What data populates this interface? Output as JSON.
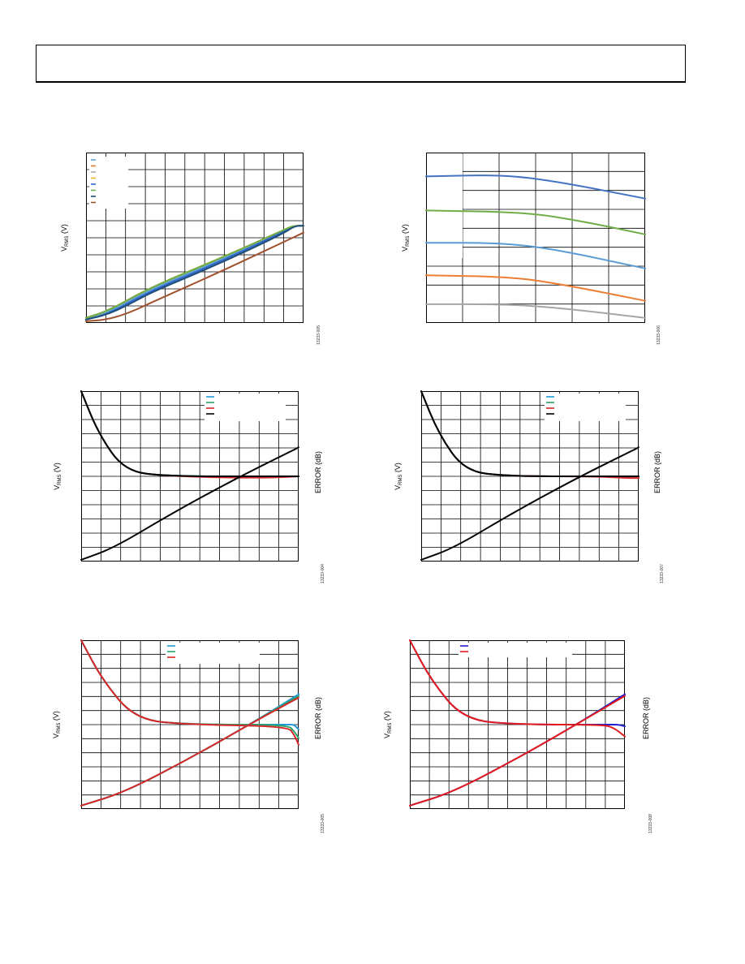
{
  "header": {
    "text": ""
  },
  "charts": [
    {
      "id": "c1",
      "ylabel_main": "V",
      "ylabel_sub": "RMS",
      "ylabel_tail": " (V)",
      "fig_id": "13233-005",
      "series": [
        {
          "color": "#5aa3d6",
          "points": [
            [
              0,
              0.02
            ],
            [
              0.1,
              0.06
            ],
            [
              0.3,
              0.2
            ],
            [
              0.6,
              0.36
            ],
            [
              0.9,
              0.53
            ],
            [
              0.96,
              0.57
            ],
            [
              1,
              0.57
            ]
          ]
        },
        {
          "color": "#e07b2a",
          "points": [
            [
              0,
              0.03
            ],
            [
              0.1,
              0.07
            ],
            [
              0.3,
              0.21
            ],
            [
              0.6,
              0.37
            ],
            [
              0.9,
              0.54
            ],
            [
              0.95,
              0.57
            ],
            [
              1,
              0.57
            ]
          ]
        },
        {
          "color": "#aaaaaa",
          "points": [
            [
              0,
              0.03
            ],
            [
              0.1,
              0.07
            ],
            [
              0.3,
              0.21
            ],
            [
              0.6,
              0.37
            ],
            [
              0.9,
              0.54
            ],
            [
              0.95,
              0.57
            ],
            [
              1,
              0.57
            ]
          ]
        },
        {
          "color": "#e8b820",
          "points": [
            [
              0,
              0.03
            ],
            [
              0.1,
              0.07
            ],
            [
              0.3,
              0.21
            ],
            [
              0.6,
              0.37
            ],
            [
              0.9,
              0.54
            ],
            [
              0.95,
              0.57
            ],
            [
              1,
              0.57
            ]
          ]
        },
        {
          "color": "#3366cc",
          "points": [
            [
              0,
              0.02
            ],
            [
              0.1,
              0.05
            ],
            [
              0.3,
              0.19
            ],
            [
              0.6,
              0.35
            ],
            [
              0.9,
              0.53
            ],
            [
              0.96,
              0.57
            ],
            [
              1,
              0.57
            ]
          ]
        },
        {
          "color": "#70ad47",
          "points": [
            [
              0,
              0.03
            ],
            [
              0.1,
              0.07
            ],
            [
              0.3,
              0.21
            ],
            [
              0.6,
              0.37
            ],
            [
              0.9,
              0.54
            ],
            [
              0.95,
              0.57
            ],
            [
              1,
              0.57
            ]
          ]
        },
        {
          "color": "#1f4e79",
          "points": [
            [
              0,
              0.02
            ],
            [
              0.1,
              0.05
            ],
            [
              0.2,
              0.11
            ],
            [
              0.3,
              0.18
            ],
            [
              0.6,
              0.34
            ],
            [
              0.9,
              0.52
            ],
            [
              0.96,
              0.57
            ],
            [
              1,
              0.57
            ]
          ]
        },
        {
          "color": "#a0522d",
          "points": [
            [
              0,
              0.01
            ],
            [
              0.1,
              0.02
            ],
            [
              0.2,
              0.06
            ],
            [
              0.3,
              0.12
            ],
            [
              0.6,
              0.29
            ],
            [
              0.9,
              0.47
            ],
            [
              1,
              0.53
            ]
          ]
        }
      ]
    },
    {
      "id": "c2",
      "ylabel_main": "V",
      "ylabel_sub": "RMS",
      "ylabel_tail": " (V)",
      "fig_id": "13233-006",
      "series": [
        {
          "color": "#4472c4",
          "points": [
            [
              0,
              0.86
            ],
            [
              0.35,
              0.87
            ],
            [
              0.6,
              0.83
            ],
            [
              1,
              0.73
            ]
          ]
        },
        {
          "color": "#70ad47",
          "points": [
            [
              0,
              0.66
            ],
            [
              0.45,
              0.65
            ],
            [
              0.7,
              0.6
            ],
            [
              1,
              0.52
            ]
          ]
        },
        {
          "color": "#5b9bd5",
          "points": [
            [
              0,
              0.47
            ],
            [
              0.35,
              0.47
            ],
            [
              0.6,
              0.43
            ],
            [
              1,
              0.32
            ]
          ]
        },
        {
          "color": "#ed7d31",
          "points": [
            [
              0,
              0.28
            ],
            [
              0.4,
              0.27
            ],
            [
              0.65,
              0.22
            ],
            [
              1,
              0.13
            ]
          ]
        },
        {
          "color": "#a5a5a5",
          "points": [
            [
              0,
              0.11
            ],
            [
              0.35,
              0.11
            ],
            [
              0.6,
              0.09
            ],
            [
              1,
              0.03
            ]
          ]
        }
      ]
    },
    {
      "id": "c3",
      "ylabel_main": "V",
      "ylabel_sub": "RMS",
      "ylabel_tail": " (V)",
      "y2label": "ERROR (dB)",
      "fig_id": "13233-004",
      "series": [
        {
          "color": "#1f9ad6",
          "points": [
            [
              0,
              1
            ],
            [
              0.08,
              0.75
            ],
            [
              0.2,
              0.53
            ],
            [
              0.4,
              0.5
            ],
            [
              0.8,
              0.5
            ],
            [
              1,
              0.5
            ]
          ]
        },
        {
          "color": "#2aa36a",
          "points": [
            [
              0,
              1
            ],
            [
              0.08,
              0.75
            ],
            [
              0.2,
              0.53
            ],
            [
              0.4,
              0.5
            ],
            [
              0.8,
              0.5
            ],
            [
              1,
              0.5
            ]
          ]
        },
        {
          "color": "#d62728",
          "points": [
            [
              0,
              1
            ],
            [
              0.08,
              0.75
            ],
            [
              0.2,
              0.53
            ],
            [
              0.4,
              0.5
            ],
            [
              0.82,
              0.49
            ],
            [
              1,
              0.5
            ]
          ]
        },
        {
          "color": "#000000",
          "points": [
            [
              0,
              1
            ],
            [
              0.08,
              0.75
            ],
            [
              0.2,
              0.53
            ],
            [
              0.4,
              0.5
            ],
            [
              0.8,
              0.5
            ],
            [
              1,
              0.5
            ]
          ]
        },
        {
          "color": "#000000",
          "points": [
            [
              0,
              0.01
            ],
            [
              0.15,
              0.08
            ],
            [
              0.4,
              0.27
            ],
            [
              0.7,
              0.48
            ],
            [
              1,
              0.67
            ]
          ]
        }
      ]
    },
    {
      "id": "c4",
      "ylabel_main": "V",
      "ylabel_sub": "RMS",
      "ylabel_tail": " (V)",
      "y2label": "ERROR (dB)",
      "fig_id": "13233-007",
      "series": [
        {
          "color": "#1f9ad6",
          "points": [
            [
              0,
              1
            ],
            [
              0.08,
              0.75
            ],
            [
              0.2,
              0.53
            ],
            [
              0.4,
              0.5
            ],
            [
              0.8,
              0.5
            ],
            [
              1,
              0.5
            ]
          ]
        },
        {
          "color": "#2aa36a",
          "points": [
            [
              0,
              1
            ],
            [
              0.08,
              0.75
            ],
            [
              0.2,
              0.53
            ],
            [
              0.4,
              0.5
            ],
            [
              0.8,
              0.5
            ],
            [
              1,
              0.5
            ]
          ]
        },
        {
          "color": "#d62728",
          "points": [
            [
              0,
              1
            ],
            [
              0.08,
              0.75
            ],
            [
              0.2,
              0.53
            ],
            [
              0.4,
              0.5
            ],
            [
              0.8,
              0.5
            ],
            [
              0.95,
              0.49
            ],
            [
              1,
              0.49
            ]
          ]
        },
        {
          "color": "#000000",
          "points": [
            [
              0,
              1
            ],
            [
              0.08,
              0.75
            ],
            [
              0.2,
              0.53
            ],
            [
              0.4,
              0.5
            ],
            [
              0.8,
              0.5
            ],
            [
              1,
              0.5
            ]
          ]
        },
        {
          "color": "#000000",
          "points": [
            [
              0,
              0.01
            ],
            [
              0.15,
              0.08
            ],
            [
              0.4,
              0.27
            ],
            [
              0.7,
              0.48
            ],
            [
              1,
              0.67
            ]
          ]
        }
      ]
    },
    {
      "id": "c5",
      "ylabel_main": "V",
      "ylabel_sub": "RMS",
      "ylabel_tail": " (V)",
      "y2label": "ERROR (dB)",
      "fig_id": "13233-005",
      "series": [
        {
          "color": "#1f9ad6",
          "points": [
            [
              0,
              1
            ],
            [
              0.1,
              0.76
            ],
            [
              0.25,
              0.53
            ],
            [
              0.5,
              0.5
            ],
            [
              0.95,
              0.5
            ],
            [
              0.98,
              0.5
            ],
            [
              1,
              0.47
            ]
          ]
        },
        {
          "color": "#2aa36a",
          "points": [
            [
              0,
              1
            ],
            [
              0.1,
              0.76
            ],
            [
              0.25,
              0.53
            ],
            [
              0.5,
              0.5
            ],
            [
              0.95,
              0.5
            ],
            [
              0.98,
              0.46
            ],
            [
              1,
              0.42
            ]
          ]
        },
        {
          "color": "#d62728",
          "points": [
            [
              0,
              1
            ],
            [
              0.1,
              0.76
            ],
            [
              0.25,
              0.53
            ],
            [
              0.5,
              0.5
            ],
            [
              0.95,
              0.49
            ],
            [
              0.98,
              0.44
            ],
            [
              1,
              0.38
            ]
          ]
        },
        {
          "color": "#1f9ad6",
          "points": [
            [
              0,
              0.02
            ],
            [
              0.2,
              0.1
            ],
            [
              0.5,
              0.3
            ],
            [
              0.8,
              0.52
            ],
            [
              1,
              0.68
            ]
          ]
        },
        {
          "color": "#2aa36a",
          "points": [
            [
              0,
              0.02
            ],
            [
              0.2,
              0.1
            ],
            [
              0.5,
              0.3
            ],
            [
              0.8,
              0.52
            ],
            [
              1,
              0.67
            ]
          ]
        },
        {
          "color": "#d62728",
          "points": [
            [
              0,
              0.02
            ],
            [
              0.2,
              0.1
            ],
            [
              0.5,
              0.3
            ],
            [
              0.8,
              0.52
            ],
            [
              1,
              0.66
            ]
          ]
        }
      ]
    },
    {
      "id": "c6",
      "ylabel_main": "V",
      "ylabel_sub": "RMS",
      "ylabel_tail": " (V)",
      "y2label": "ERROR (dB)",
      "fig_id": "13233-008",
      "series": [
        {
          "color": "#1f1fcc",
          "points": [
            [
              0,
              1
            ],
            [
              0.1,
              0.76
            ],
            [
              0.25,
              0.53
            ],
            [
              0.5,
              0.5
            ],
            [
              0.93,
              0.5
            ],
            [
              0.97,
              0.5
            ],
            [
              1,
              0.49
            ]
          ]
        },
        {
          "color": "#e41a1c",
          "points": [
            [
              0,
              1
            ],
            [
              0.1,
              0.76
            ],
            [
              0.25,
              0.53
            ],
            [
              0.5,
              0.5
            ],
            [
              0.9,
              0.5
            ],
            [
              0.95,
              0.48
            ],
            [
              1,
              0.43
            ]
          ]
        },
        {
          "color": "#1f1fcc",
          "points": [
            [
              0,
              0.02
            ],
            [
              0.2,
              0.1
            ],
            [
              0.5,
              0.3
            ],
            [
              0.8,
              0.52
            ],
            [
              1,
              0.68
            ]
          ]
        },
        {
          "color": "#e41a1c",
          "points": [
            [
              0,
              0.02
            ],
            [
              0.2,
              0.1
            ],
            [
              0.5,
              0.3
            ],
            [
              0.8,
              0.52
            ],
            [
              1,
              0.67
            ]
          ]
        }
      ]
    }
  ]
}
